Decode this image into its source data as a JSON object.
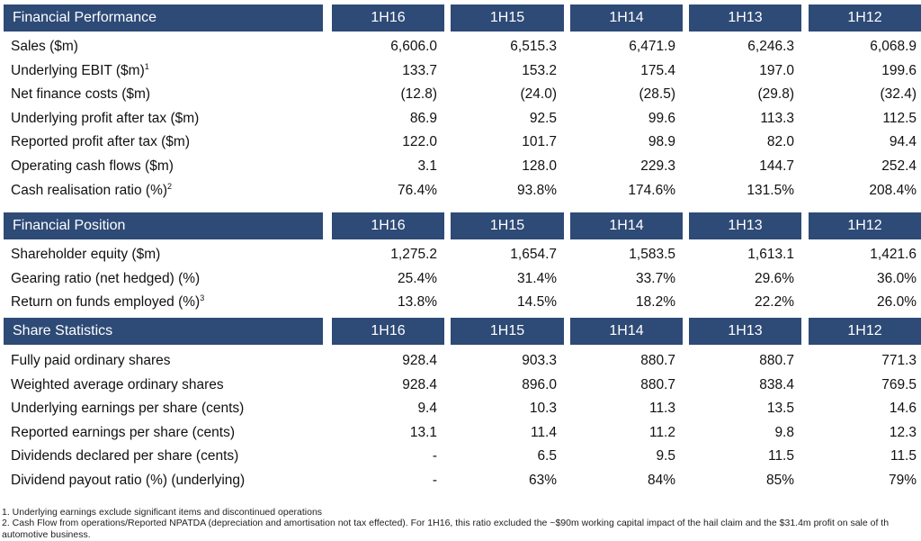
{
  "columns": [
    "1H16",
    "1H15",
    "1H14",
    "1H13",
    "1H12"
  ],
  "sections": [
    {
      "title": "Financial Performance",
      "rows": [
        {
          "label": "Sales ($m)",
          "sup": "",
          "values": [
            "6,606.0",
            "6,515.3",
            "6,471.9",
            "6,246.3",
            "6,068.9"
          ]
        },
        {
          "label": "Underlying EBIT ($m)",
          "sup": "1",
          "values": [
            "133.7",
            "153.2",
            "175.4",
            "197.0",
            "199.6"
          ]
        },
        {
          "label": "Net finance costs ($m)",
          "sup": "",
          "values": [
            "(12.8)",
            "(24.0)",
            "(28.5)",
            "(29.8)",
            "(32.4)"
          ]
        },
        {
          "label": "Underlying profit after tax ($m)",
          "sup": "",
          "values": [
            "86.9",
            "92.5",
            "99.6",
            "113.3",
            "112.5"
          ]
        },
        {
          "label": "Reported profit after tax ($m)",
          "sup": "",
          "values": [
            "122.0",
            "101.7",
            "98.9",
            "82.0",
            "94.4"
          ]
        },
        {
          "label": "Operating cash flows ($m)",
          "sup": "",
          "values": [
            "3.1",
            "128.0",
            "229.3",
            "144.7",
            "252.4"
          ]
        },
        {
          "label": "Cash realisation ratio (%)",
          "sup": "2",
          "values": [
            "76.4%",
            "93.8%",
            "174.6%",
            "131.5%",
            "208.4%"
          ]
        }
      ]
    },
    {
      "title": "Financial Position",
      "rows": [
        {
          "label": "Shareholder equity ($m)",
          "sup": "",
          "values": [
            "1,275.2",
            "1,654.7",
            "1,583.5",
            "1,613.1",
            "1,421.6"
          ]
        },
        {
          "label": "Gearing ratio (net hedged) (%)",
          "sup": "",
          "values": [
            "25.4%",
            "31.4%",
            "33.7%",
            "29.6%",
            "36.0%"
          ]
        },
        {
          "label": "Return on funds employed (%)",
          "sup": "3",
          "values": [
            "13.8%",
            "14.5%",
            "18.2%",
            "22.2%",
            "26.0%"
          ]
        }
      ]
    },
    {
      "title": "Share Statistics",
      "rows": [
        {
          "label": "Fully paid ordinary shares",
          "sup": "",
          "values": [
            "928.4",
            "903.3",
            "880.7",
            "880.7",
            "771.3"
          ]
        },
        {
          "label": "Weighted average ordinary shares",
          "sup": "",
          "values": [
            "928.4",
            "896.0",
            "880.7",
            "838.4",
            "769.5"
          ]
        },
        {
          "label": "Underlying earnings per share (cents)",
          "sup": "",
          "values": [
            "9.4",
            "10.3",
            "11.3",
            "13.5",
            "14.6"
          ]
        },
        {
          "label": "Reported earnings per share (cents)",
          "sup": "",
          "values": [
            "13.1",
            "11.4",
            "11.2",
            "9.8",
            "12.3"
          ]
        },
        {
          "label": "Dividends declared per share (cents)",
          "sup": "",
          "values": [
            "-",
            "6.5",
            "9.5",
            "11.5",
            "11.5"
          ]
        },
        {
          "label": "Dividend payout ratio (%) (underlying)",
          "sup": "",
          "values": [
            "-",
            "63%",
            "84%",
            "85%",
            "79%"
          ]
        }
      ]
    }
  ],
  "footnotes": [
    "1. Underlying earnings exclude significant items and discontinued operations",
    "2. Cash Flow from operations/Reported  NPATDA (depreciation and amortisation not tax effected).  For 1H16, this ratio excluded the ~$90m working capital impact of the hail claim and the $31.4m profit on sale of th",
    "automotive business."
  ]
}
